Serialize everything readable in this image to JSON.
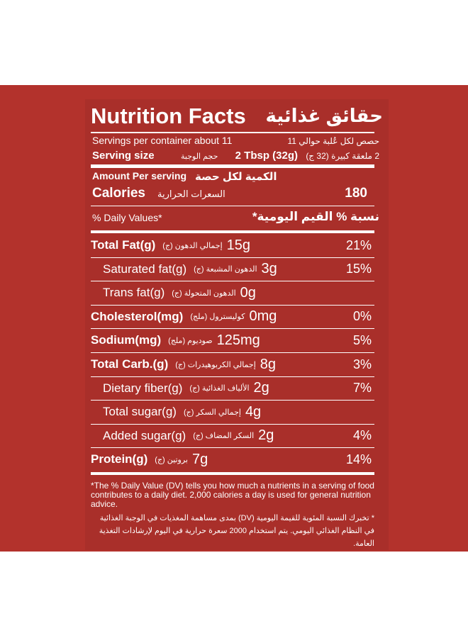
{
  "header": {
    "title": "Nutrition Facts",
    "title_ar": "حقائق غذائية",
    "servings": "Servings per container about 11",
    "servings_ar": "حصص لكل عُلبة حوالي 11",
    "serving_size_label": "Serving size",
    "serving_size_label_ar": "حجم الوجبة",
    "serving_size": "2 Tbsp (32g)",
    "serving_size_ar": "2 ملعقة كبيرة (32 ج)",
    "amount_per_serving": "Amount Per serving",
    "amount_per_serving_ar": "الكمية لكل حصة",
    "calories_label": "Calories",
    "calories_label_ar": "السعرات الحرارية",
    "calories": "180",
    "daily_values": "% Daily Values*",
    "daily_values_ar": "نسبة % القيم اليومية*"
  },
  "table": {
    "rows": [
      {
        "name": "Total Fat(g)",
        "name_ar": "إجمالي الدهون (ج)",
        "amount": "15g",
        "dv": "21%"
      },
      {
        "name": "Saturated fat(g)",
        "name_ar": "الدهون المشبعة (ج)",
        "amount": "3g",
        "dv": "15%"
      },
      {
        "name": "Trans fat(g)",
        "name_ar": "الدهون المتحولة (ج)",
        "amount": "0g"
      },
      {
        "name": "Cholesterol(mg)",
        "name_ar": "كوليسترول (ملج)",
        "amount": "0mg",
        "dv": "0%"
      },
      {
        "name": "Sodium(mg)",
        "name_ar": "صوديوم (ملج)",
        "amount": "125mg",
        "dv": "5%"
      },
      {
        "name": "Total Carb.(g)",
        "name_ar": "إجمالي الكربوهيدرات (ج)",
        "amount": "8g",
        "dv": "3%"
      },
      {
        "name": "Dietary fiber(g)",
        "name_ar": "الألياف الغذائية (ج)",
        "amount": "2g",
        "dv": "7%"
      },
      {
        "name": "Total sugar(g)",
        "name_ar": "إجمالي السكر (ج)",
        "amount": "4g"
      },
      {
        "name": "Added sugar(g)",
        "name_ar": "السكر المضاف (ج)",
        "amount": "2g",
        "dv": "4%"
      },
      {
        "name": "Protein(g)",
        "name_ar": "بروتين (ج)",
        "amount": "7g",
        "dv": "14%"
      }
    ]
  },
  "footnote": {
    "en": "*The % Daily Value (DV) tells you how much a nutrients in a serving of food contributes to a daily diet. 2,000 calories a day is used for general nutrition advice.",
    "ar": "* تخبرك النسبة المئوية للقيمة اليومية (DV) بمدى مساهمة المغذيات في الوجبة الغذائية في النظام الغذائي اليومي. يتم استخدام 2000 سعرة حرارية في اليوم لإرشادات التغذية العامة."
  }
}
